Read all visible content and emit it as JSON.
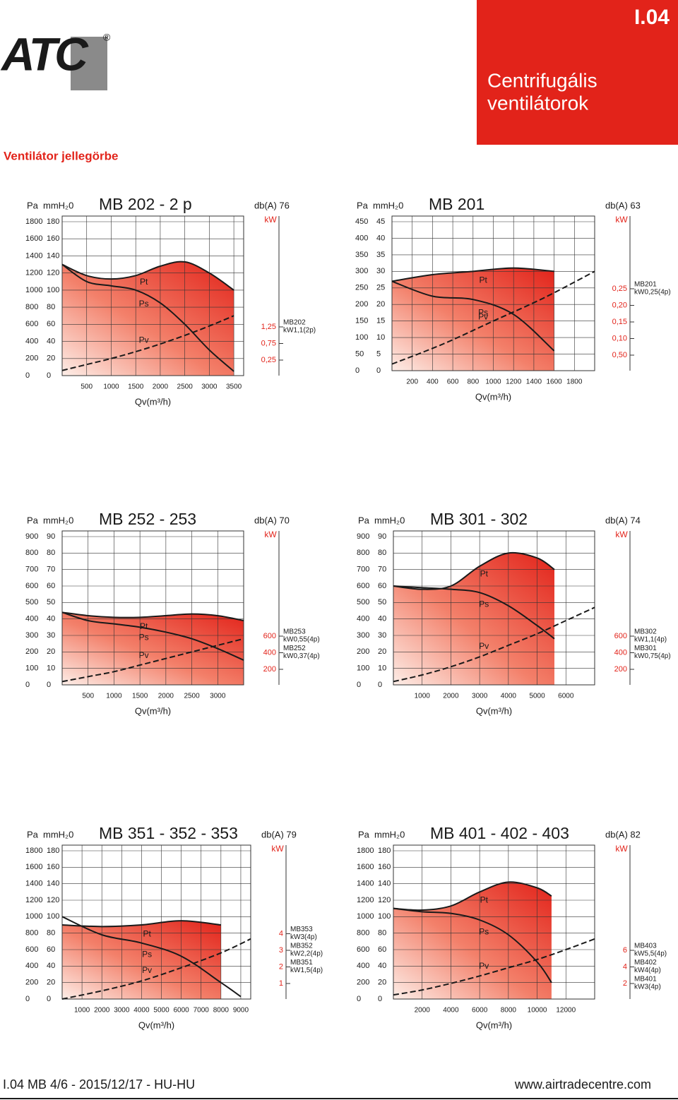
{
  "header": {
    "logo": "ATC",
    "registered": "®",
    "code": "I.04",
    "title_line1": "Centrifugális",
    "title_line2": "ventilátorok",
    "section": "Ventilátor jellegörbe"
  },
  "footer": {
    "left": "I.04 MB 4/6 - 2015/12/17 - HU-HU",
    "right": "www.airtradecentre.com"
  },
  "chart_data": [
    {
      "type": "line",
      "title": "MB 202 - 2 p",
      "noise": "db(A) 76",
      "y_label": "Pa",
      "y2_label": "mmH₂0",
      "x_label": "Qv(m³/h)",
      "kw_label": "kW",
      "xlim": [
        0,
        3700
      ],
      "xticks": [
        500,
        1000,
        1500,
        2000,
        2500,
        3000,
        3500
      ],
      "ylim": [
        0,
        1800
      ],
      "yticks": [
        0,
        200,
        400,
        600,
        800,
        1000,
        1200,
        1400,
        1600,
        1800
      ],
      "y2lim": [
        0,
        180
      ],
      "y2ticks": [
        0,
        20,
        40,
        60,
        80,
        100,
        120,
        140,
        160,
        180
      ],
      "kw_ticks": [
        "1,25",
        "0,75",
        "0,25"
      ],
      "motors": [
        {
          "name": "MB202",
          "power": "kW1,1(2p)"
        }
      ],
      "series": [
        {
          "name": "Pt",
          "color": "#1a1a1a",
          "style": "solid",
          "x": [
            0,
            500,
            1000,
            1500,
            2000,
            2500,
            3000,
            3500
          ],
          "values": [
            1300,
            1170,
            1130,
            1170,
            1280,
            1330,
            1200,
            1000
          ]
        },
        {
          "name": "Ps",
          "color": "#1a1a1a",
          "style": "solid",
          "x": [
            0,
            500,
            1000,
            1500,
            2000,
            2500,
            3000,
            3500
          ],
          "values": [
            1300,
            1100,
            1050,
            1000,
            850,
            600,
            300,
            50
          ]
        },
        {
          "name": "Pv",
          "color": "#1a1a1a",
          "style": "dashed",
          "x": [
            0,
            500,
            1000,
            1500,
            2000,
            2500,
            3000,
            3500
          ],
          "values": [
            60,
            130,
            200,
            280,
            370,
            470,
            580,
            700
          ]
        }
      ]
    },
    {
      "type": "line",
      "title": "MB 201",
      "noise": "db(A) 63",
      "y_label": "Pa",
      "y2_label": "mmH₂0",
      "x_label": "Qv(m³/h)",
      "kw_label": "kW",
      "xlim": [
        0,
        2000
      ],
      "xticks": [
        200,
        400,
        600,
        800,
        1000,
        1200,
        1400,
        1600,
        1800
      ],
      "ylim": [
        0,
        450
      ],
      "yticks": [
        0,
        50,
        100,
        150,
        200,
        250,
        300,
        350,
        400,
        450
      ],
      "y2lim": [
        0,
        45
      ],
      "y2ticks": [
        0,
        5,
        10,
        15,
        20,
        25,
        30,
        35,
        40,
        45
      ],
      "kw_ticks": [
        "0,25",
        "0,20",
        "0,15",
        "0,10",
        "0,50"
      ],
      "motors": [
        {
          "name": "MB201",
          "power": "kW0,25(4p)"
        }
      ],
      "series": [
        {
          "name": "Pt",
          "color": "#1a1a1a",
          "style": "solid",
          "x": [
            0,
            400,
            800,
            1200,
            1600
          ],
          "values": [
            270,
            290,
            300,
            310,
            300
          ]
        },
        {
          "name": "Ps",
          "color": "#1a1a1a",
          "style": "solid",
          "x": [
            0,
            400,
            800,
            1200,
            1600
          ],
          "values": [
            270,
            225,
            215,
            170,
            60
          ]
        },
        {
          "name": "Pv",
          "color": "#1a1a1a",
          "style": "dashed",
          "x": [
            0,
            500,
            1000,
            1500,
            2000
          ],
          "values": [
            20,
            80,
            150,
            220,
            300
          ]
        }
      ]
    },
    {
      "type": "line",
      "title": "MB 252 - 253",
      "noise": "db(A) 70",
      "y_label": "Pa",
      "y2_label": "mmH₂0",
      "x_label": "Qv(m³/h)",
      "kw_label": "kW",
      "xlim": [
        0,
        3500
      ],
      "xticks": [
        500,
        1000,
        1500,
        2000,
        2500,
        3000
      ],
      "ylim": [
        0,
        900
      ],
      "yticks": [
        0,
        100,
        200,
        300,
        400,
        500,
        600,
        700,
        800,
        900
      ],
      "y2lim": [
        0,
        90
      ],
      "y2ticks": [
        0,
        10,
        20,
        30,
        40,
        50,
        60,
        70,
        80,
        90
      ],
      "kw_ticks": [
        "600",
        "400",
        "200"
      ],
      "motors": [
        {
          "name": "MB253",
          "power": "kW0,55(4p)"
        },
        {
          "name": "MB252",
          "power": "kW0,37(4p)"
        }
      ],
      "series": [
        {
          "name": "Pt",
          "color": "#1a1a1a",
          "style": "solid",
          "x": [
            0,
            500,
            1000,
            1500,
            2000,
            2500,
            3000,
            3500
          ],
          "values": [
            440,
            420,
            410,
            410,
            420,
            430,
            420,
            390
          ]
        },
        {
          "name": "Ps",
          "color": "#1a1a1a",
          "style": "solid",
          "x": [
            0,
            500,
            1000,
            1500,
            2000,
            2500,
            3000,
            3500
          ],
          "values": [
            440,
            390,
            370,
            350,
            320,
            280,
            220,
            150
          ]
        },
        {
          "name": "Pv",
          "color": "#1a1a1a",
          "style": "dashed",
          "x": [
            0,
            500,
            1000,
            1500,
            2000,
            2500,
            3000,
            3500
          ],
          "values": [
            20,
            50,
            80,
            120,
            160,
            200,
            240,
            280
          ]
        }
      ]
    },
    {
      "type": "line",
      "title": "MB 301 - 302",
      "noise": "db(A) 74",
      "y_label": "Pa",
      "y2_label": "mmH₂0",
      "x_label": "Qv(m³/h)",
      "kw_label": "kW",
      "xlim": [
        0,
        7000
      ],
      "xticks": [
        1000,
        2000,
        3000,
        4000,
        5000,
        6000
      ],
      "ylim": [
        0,
        900
      ],
      "yticks": [
        0,
        100,
        200,
        300,
        400,
        500,
        600,
        700,
        800,
        900
      ],
      "y2lim": [
        0,
        90
      ],
      "y2ticks": [
        0,
        10,
        20,
        30,
        40,
        50,
        60,
        70,
        80,
        90
      ],
      "kw_ticks": [
        "600",
        "400",
        "200"
      ],
      "motors": [
        {
          "name": "MB302",
          "power": "kW1,1(4p)"
        },
        {
          "name": "MB301",
          "power": "kW0,75(4p)"
        }
      ],
      "series": [
        {
          "name": "Pt",
          "color": "#1a1a1a",
          "style": "solid",
          "x": [
            0,
            1000,
            2000,
            3000,
            4000,
            5000,
            5600
          ],
          "values": [
            600,
            580,
            600,
            720,
            800,
            770,
            700
          ]
        },
        {
          "name": "Ps",
          "color": "#1a1a1a",
          "style": "solid",
          "x": [
            0,
            1000,
            2000,
            3000,
            4000,
            5000,
            5600
          ],
          "values": [
            600,
            590,
            580,
            560,
            480,
            360,
            280
          ]
        },
        {
          "name": "Pv",
          "color": "#1a1a1a",
          "style": "dashed",
          "x": [
            0,
            1000,
            2000,
            3000,
            4000,
            5000,
            6000,
            7000
          ],
          "values": [
            20,
            60,
            110,
            170,
            240,
            310,
            390,
            470
          ]
        }
      ]
    },
    {
      "type": "line",
      "title": "MB 351 - 352 - 353",
      "noise": "db(A) 79",
      "y_label": "Pa",
      "y2_label": "mmH₂0",
      "x_label": "Qv(m³/h)",
      "kw_label": "kW",
      "xlim": [
        0,
        9500
      ],
      "xticks": [
        1000,
        2000,
        3000,
        4000,
        5000,
        6000,
        7000,
        8000,
        9000
      ],
      "ylim": [
        0,
        1800
      ],
      "yticks": [
        0,
        200,
        400,
        600,
        800,
        1000,
        1200,
        1400,
        1600,
        1800
      ],
      "y2lim": [
        0,
        180
      ],
      "y2ticks": [
        0,
        20,
        40,
        60,
        80,
        100,
        120,
        140,
        160,
        180
      ],
      "kw_ticks": [
        "4",
        "3",
        "2",
        "1"
      ],
      "motors": [
        {
          "name": "MB353",
          "power": "kW3(4p)"
        },
        {
          "name": "MB352",
          "power": "kW2,2(4p)"
        },
        {
          "name": "MB351",
          "power": "kW1,5(4p)"
        }
      ],
      "series": [
        {
          "name": "Pt",
          "color": "#1a1a1a",
          "style": "solid",
          "x": [
            0,
            2000,
            4000,
            6000,
            8000
          ],
          "values": [
            900,
            880,
            900,
            950,
            900
          ]
        },
        {
          "name": "Ps",
          "color": "#1a1a1a",
          "style": "solid",
          "x": [
            0,
            2000,
            4000,
            6000,
            8000,
            9000
          ],
          "values": [
            1000,
            780,
            680,
            520,
            200,
            30
          ]
        },
        {
          "name": "Pv",
          "color": "#1a1a1a",
          "style": "dashed",
          "x": [
            0,
            2000,
            4000,
            6000,
            8000,
            9500
          ],
          "values": [
            0,
            100,
            220,
            380,
            560,
            730
          ]
        }
      ]
    },
    {
      "type": "line",
      "title": "MB 401 - 402 - 403",
      "noise": "db(A) 82",
      "y_label": "Pa",
      "y2_label": "mmH₂0",
      "x_label": "Qv(m³/h)",
      "kw_label": "kW",
      "xlim": [
        0,
        14000
      ],
      "xticks": [
        2000,
        4000,
        6000,
        8000,
        10000,
        12000
      ],
      "ylim": [
        0,
        1800
      ],
      "yticks": [
        0,
        200,
        400,
        600,
        800,
        1000,
        1200,
        1400,
        1600,
        1800
      ],
      "y2lim": [
        0,
        180
      ],
      "y2ticks": [
        0,
        20,
        40,
        60,
        80,
        100,
        120,
        140,
        160,
        180
      ],
      "kw_ticks": [
        "6",
        "4",
        "2"
      ],
      "motors": [
        {
          "name": "MB403",
          "power": "kW5,5(4p)"
        },
        {
          "name": "MB402",
          "power": "kW4(4p)"
        },
        {
          "name": "MB401",
          "power": "kW3(4p)"
        }
      ],
      "series": [
        {
          "name": "Pt",
          "color": "#1a1a1a",
          "style": "solid",
          "x": [
            0,
            2000,
            4000,
            6000,
            8000,
            10000,
            11000
          ],
          "values": [
            1100,
            1080,
            1130,
            1300,
            1420,
            1350,
            1250
          ]
        },
        {
          "name": "Ps",
          "color": "#1a1a1a",
          "style": "solid",
          "x": [
            0,
            2000,
            4000,
            6000,
            8000,
            10000,
            11000
          ],
          "values": [
            1100,
            1060,
            1040,
            960,
            780,
            450,
            200
          ]
        },
        {
          "name": "Pv",
          "color": "#1a1a1a",
          "style": "dashed",
          "x": [
            0,
            2000,
            4000,
            6000,
            8000,
            10000,
            12000,
            14000
          ],
          "values": [
            50,
            110,
            190,
            280,
            380,
            480,
            600,
            730
          ]
        }
      ]
    }
  ]
}
